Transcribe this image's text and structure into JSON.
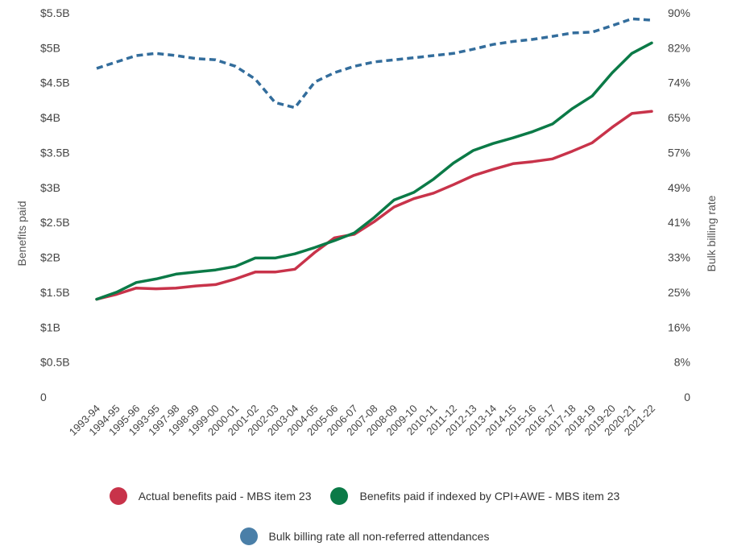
{
  "chart_data": {
    "type": "line",
    "categories": [
      "1993-94",
      "1994-95",
      "1995-96",
      "1993-95",
      "1997-98",
      "1998-99",
      "1999-00",
      "2000-01",
      "2001-02",
      "2002-03",
      "2003-04",
      "2004-05",
      "2005-06",
      "2006-07",
      "2007-08",
      "2008-09",
      "2009-10",
      "2010-11",
      "2011-12",
      "2012-13",
      "2013-14",
      "2014-15",
      "2015-16",
      "2016-17",
      "2017-18",
      "2018-19",
      "2019-20",
      "2020-21",
      "2021-22"
    ],
    "y_left": {
      "label": "Benefits paid",
      "ticks": [
        "0",
        "$0.5B",
        "$1B",
        "$1.5B",
        "$2B",
        "$2.5B",
        "$3B",
        "$3.5B",
        "$4B",
        "$4.5B",
        "$5B",
        "$5.5B"
      ],
      "range": [
        0,
        5.5
      ]
    },
    "y_right": {
      "label": "Bulk billing rate",
      "ticks": [
        "0",
        "8%",
        "16%",
        "25%",
        "33%",
        "41%",
        "49%",
        "57%",
        "65%",
        "74%",
        "82%",
        "90%"
      ],
      "range": [
        0,
        90
      ]
    },
    "series": [
      {
        "name": "Actual benefits paid - MBS item 23",
        "axis": "left",
        "color": "#c8334a",
        "style": "solid",
        "values": [
          1.4,
          1.47,
          1.56,
          1.55,
          1.56,
          1.59,
          1.61,
          1.69,
          1.79,
          1.79,
          1.83,
          2.07,
          2.28,
          2.33,
          2.51,
          2.72,
          2.84,
          2.92,
          3.04,
          3.17,
          3.26,
          3.34,
          3.37,
          3.41,
          3.52,
          3.64,
          3.86,
          4.06,
          4.09
        ]
      },
      {
        "name": "Benefits paid if indexed by CPI+AWE - MBS item 23",
        "axis": "left",
        "color": "#0b7a47",
        "style": "solid",
        "values": [
          1.4,
          1.5,
          1.64,
          1.69,
          1.76,
          1.79,
          1.82,
          1.87,
          1.99,
          1.99,
          2.05,
          2.14,
          2.24,
          2.35,
          2.57,
          2.82,
          2.93,
          3.12,
          3.35,
          3.53,
          3.63,
          3.71,
          3.8,
          3.91,
          4.13,
          4.31,
          4.64,
          4.92,
          5.07
        ]
      },
      {
        "name": "Bulk billing rate all non-referred attendances",
        "axis": "right",
        "color": "#336d9c",
        "style": "dashed",
        "values": [
          77.0,
          78.5,
          80.0,
          80.5,
          80.0,
          79.3,
          79.0,
          77.5,
          74.5,
          69.0,
          67.8,
          73.8,
          76.0,
          77.5,
          78.5,
          79.0,
          79.5,
          80.0,
          80.5,
          81.5,
          82.6,
          83.3,
          83.8,
          84.5,
          85.3,
          85.5,
          87.0,
          88.6,
          88.3
        ]
      }
    ],
    "grid": false,
    "legend_position": "bottom"
  }
}
